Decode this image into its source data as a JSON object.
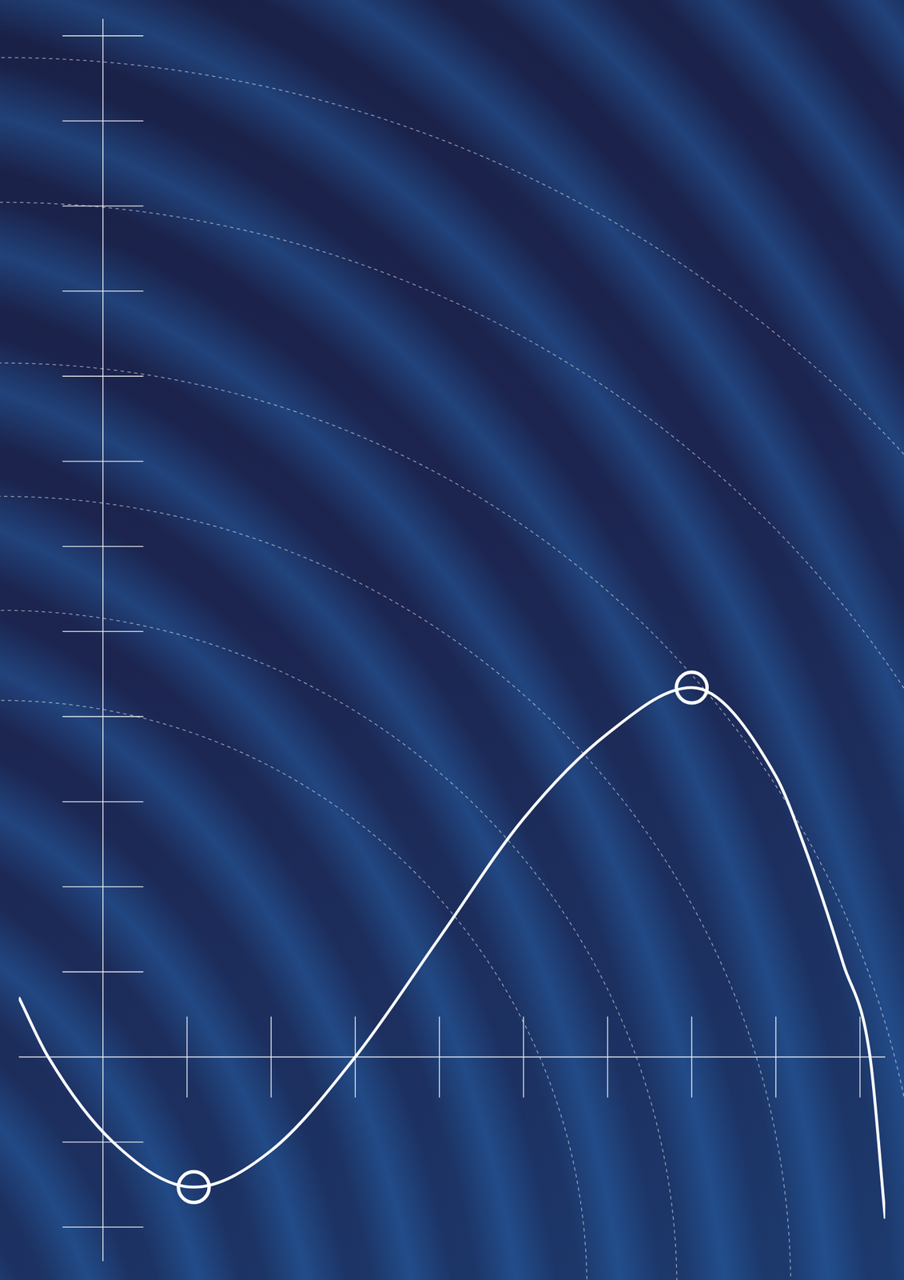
{
  "chart_data": {
    "type": "line",
    "x": [
      -1.0,
      -0.65,
      0.12,
      1.08,
      2.0,
      3.0,
      4.0,
      5.0,
      6.0,
      7.0,
      8.0,
      8.33,
      8.8,
      9.12,
      9.3
    ],
    "values": [
      0.7,
      0,
      -1.0,
      -1.53,
      -1.1,
      0,
      1.4,
      2.8,
      3.8,
      4.34,
      3.3,
      2.5,
      1.1,
      0,
      -1.9
    ],
    "color": "#ffffff",
    "marker": "none",
    "line_style": "solid",
    "highlight": {
      "x": [
        1.08,
        7.0
      ],
      "values": [
        -1.53,
        4.34
      ],
      "marker": "circle",
      "color": "#ffffff"
    },
    "xlim": [
      -1.0,
      9.3
    ],
    "xticks": [
      1,
      2,
      3,
      4,
      5,
      6,
      7,
      8,
      9
    ],
    "ylim": [
      -2.4,
      12.2
    ],
    "yticks": [
      -2,
      -1,
      0,
      1,
      2,
      3,
      4,
      5,
      6,
      7,
      8,
      9,
      10,
      11,
      12
    ],
    "grid": false,
    "tick_labels": false
  }
}
